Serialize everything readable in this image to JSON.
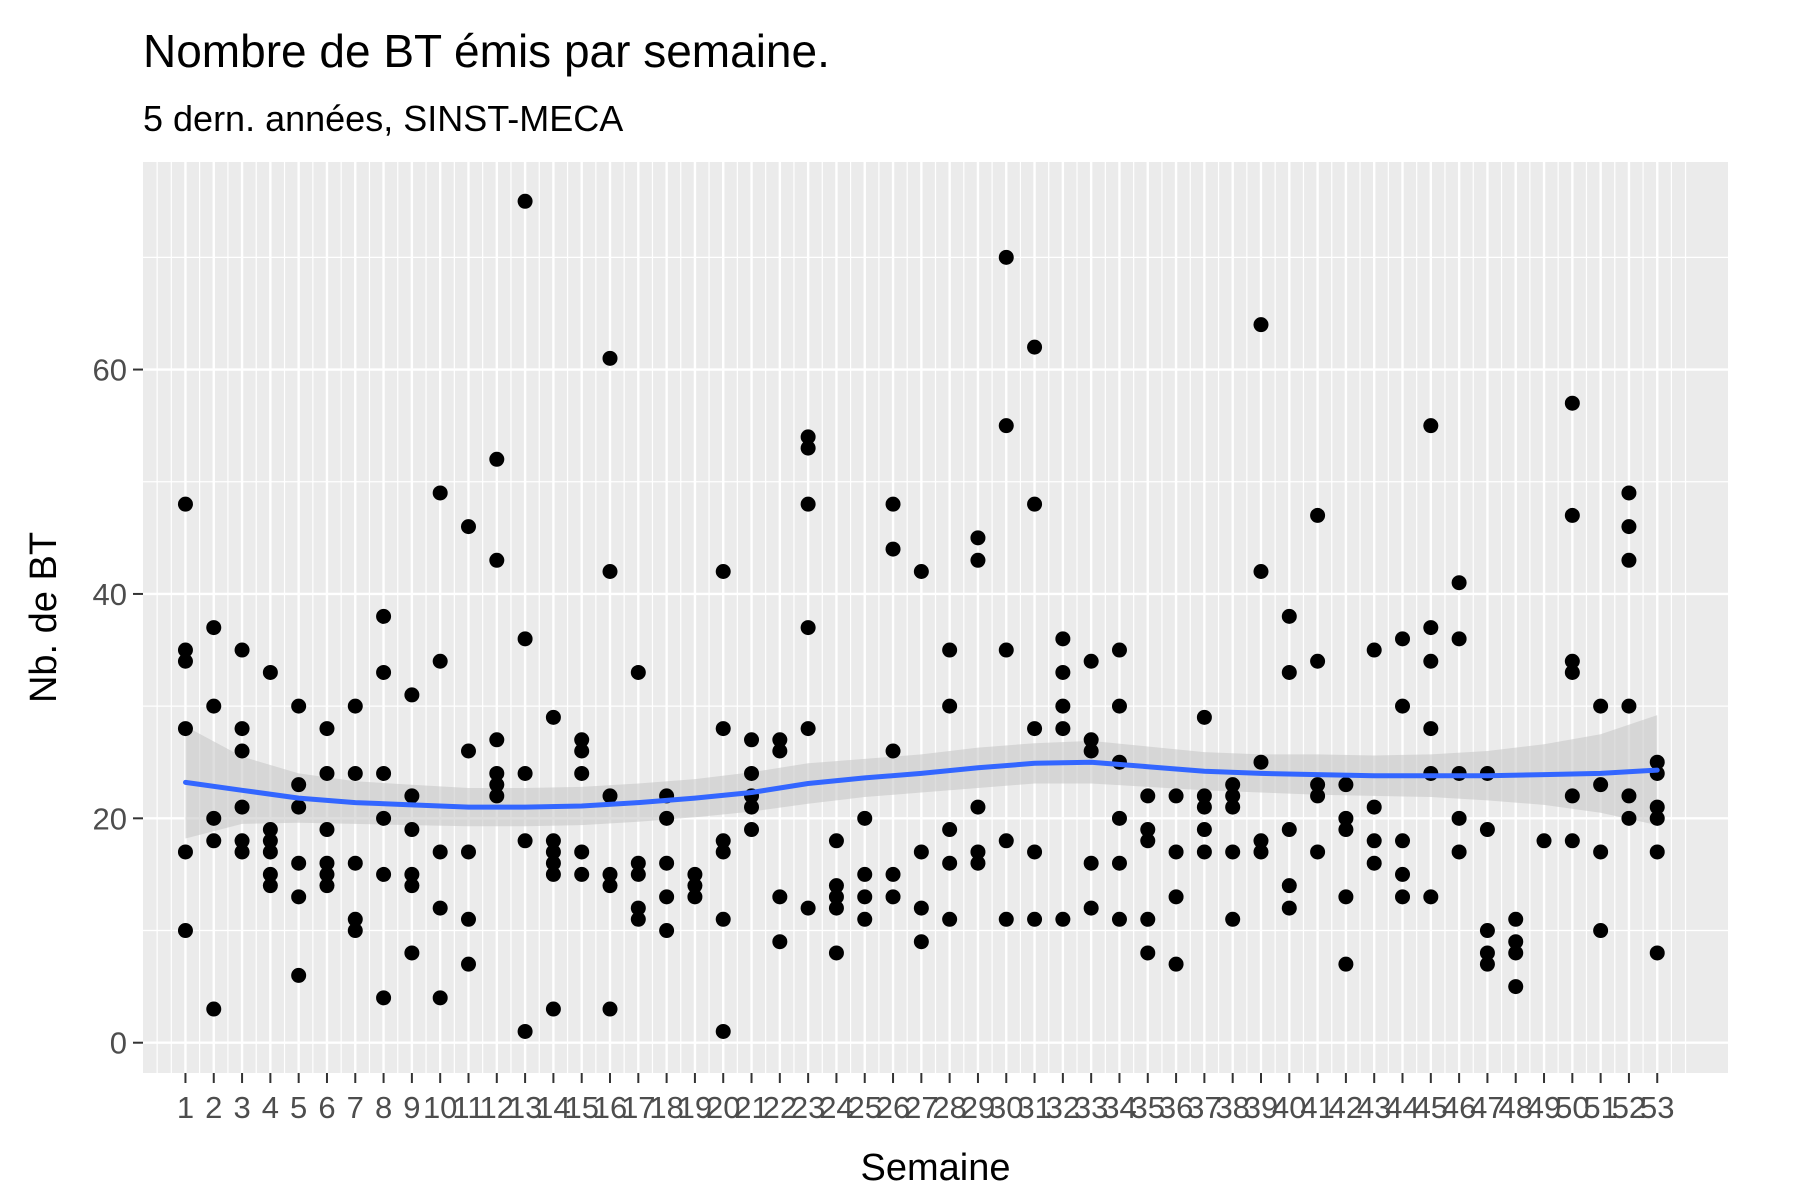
{
  "title": "Nombre de BT émis par semaine.",
  "subtitle": "5 dern. années, SINST-MECA",
  "chart_data": {
    "type": "scatter",
    "xlabel": "Semaine",
    "ylabel": "Nb. de BT",
    "x_ticks": [
      1,
      2,
      3,
      4,
      5,
      6,
      7,
      8,
      9,
      10,
      11,
      12,
      13,
      14,
      15,
      16,
      17,
      18,
      19,
      20,
      21,
      22,
      23,
      24,
      25,
      26,
      27,
      28,
      29,
      30,
      31,
      32,
      33,
      34,
      35,
      36,
      37,
      38,
      39,
      40,
      41,
      42,
      43,
      44,
      45,
      46,
      47,
      48,
      49,
      50,
      51,
      52,
      53
    ],
    "y_ticks": [
      0,
      20,
      40,
      60
    ],
    "xlim": [
      -0.5,
      55.5
    ],
    "ylim": [
      -2.7,
      78.5
    ],
    "grid": true,
    "panel_color": "#ebebeb",
    "point_color": "#000000",
    "smooth_color": "#3366ff",
    "ribbon_color": "#c8c8c8",
    "points": [
      [
        1,
        48
      ],
      [
        1,
        35
      ],
      [
        1,
        34
      ],
      [
        1,
        28
      ],
      [
        1,
        17
      ],
      [
        1,
        10
      ],
      [
        2,
        37
      ],
      [
        2,
        30
      ],
      [
        2,
        20
      ],
      [
        2,
        18
      ],
      [
        2,
        3
      ],
      [
        3,
        35
      ],
      [
        3,
        28
      ],
      [
        3,
        26
      ],
      [
        3,
        21
      ],
      [
        3,
        18
      ],
      [
        3,
        17
      ],
      [
        4,
        33
      ],
      [
        4,
        19
      ],
      [
        4,
        18
      ],
      [
        4,
        17
      ],
      [
        4,
        15
      ],
      [
        4,
        14
      ],
      [
        5,
        30
      ],
      [
        5,
        23
      ],
      [
        5,
        21
      ],
      [
        5,
        16
      ],
      [
        5,
        13
      ],
      [
        5,
        6
      ],
      [
        6,
        28
      ],
      [
        6,
        24
      ],
      [
        6,
        19
      ],
      [
        6,
        16
      ],
      [
        6,
        15
      ],
      [
        6,
        14
      ],
      [
        7,
        30
      ],
      [
        7,
        24
      ],
      [
        7,
        16
      ],
      [
        7,
        11
      ],
      [
        7,
        10
      ],
      [
        8,
        38
      ],
      [
        8,
        33
      ],
      [
        8,
        24
      ],
      [
        8,
        20
      ],
      [
        8,
        15
      ],
      [
        8,
        4
      ],
      [
        9,
        31
      ],
      [
        9,
        22
      ],
      [
        9,
        19
      ],
      [
        9,
        15
      ],
      [
        9,
        14
      ],
      [
        9,
        8
      ],
      [
        10,
        49
      ],
      [
        10,
        34
      ],
      [
        10,
        17
      ],
      [
        10,
        12
      ],
      [
        10,
        4
      ],
      [
        11,
        46
      ],
      [
        11,
        26
      ],
      [
        11,
        17
      ],
      [
        11,
        11
      ],
      [
        11,
        7
      ],
      [
        12,
        52
      ],
      [
        12,
        43
      ],
      [
        12,
        27
      ],
      [
        12,
        24
      ],
      [
        12,
        23
      ],
      [
        12,
        22
      ],
      [
        13,
        75
      ],
      [
        13,
        36
      ],
      [
        13,
        24
      ],
      [
        13,
        18
      ],
      [
        13,
        1
      ],
      [
        14,
        29
      ],
      [
        14,
        18
      ],
      [
        14,
        17
      ],
      [
        14,
        16
      ],
      [
        14,
        15
      ],
      [
        14,
        3
      ],
      [
        15,
        27
      ],
      [
        15,
        26
      ],
      [
        15,
        24
      ],
      [
        15,
        17
      ],
      [
        15,
        15
      ],
      [
        16,
        61
      ],
      [
        16,
        42
      ],
      [
        16,
        22
      ],
      [
        16,
        15
      ],
      [
        16,
        14
      ],
      [
        16,
        3
      ],
      [
        17,
        33
      ],
      [
        17,
        16
      ],
      [
        17,
        15
      ],
      [
        17,
        12
      ],
      [
        17,
        11
      ],
      [
        18,
        22
      ],
      [
        18,
        20
      ],
      [
        18,
        16
      ],
      [
        18,
        13
      ],
      [
        18,
        10
      ],
      [
        19,
        15
      ],
      [
        19,
        14
      ],
      [
        19,
        13
      ],
      [
        20,
        42
      ],
      [
        20,
        28
      ],
      [
        20,
        18
      ],
      [
        20,
        17
      ],
      [
        20,
        11
      ],
      [
        20,
        1
      ],
      [
        21,
        27
      ],
      [
        21,
        24
      ],
      [
        21,
        22
      ],
      [
        21,
        21
      ],
      [
        21,
        19
      ],
      [
        22,
        27
      ],
      [
        22,
        26
      ],
      [
        22,
        13
      ],
      [
        22,
        9
      ],
      [
        23,
        54
      ],
      [
        23,
        53
      ],
      [
        23,
        48
      ],
      [
        23,
        37
      ],
      [
        23,
        28
      ],
      [
        23,
        12
      ],
      [
        24,
        18
      ],
      [
        24,
        14
      ],
      [
        24,
        13
      ],
      [
        24,
        12
      ],
      [
        24,
        8
      ],
      [
        25,
        20
      ],
      [
        25,
        15
      ],
      [
        25,
        13
      ],
      [
        25,
        11
      ],
      [
        26,
        48
      ],
      [
        26,
        44
      ],
      [
        26,
        26
      ],
      [
        26,
        15
      ],
      [
        26,
        13
      ],
      [
        27,
        42
      ],
      [
        27,
        17
      ],
      [
        27,
        12
      ],
      [
        27,
        9
      ],
      [
        28,
        35
      ],
      [
        28,
        30
      ],
      [
        28,
        19
      ],
      [
        28,
        16
      ],
      [
        28,
        11
      ],
      [
        29,
        45
      ],
      [
        29,
        43
      ],
      [
        29,
        21
      ],
      [
        29,
        17
      ],
      [
        29,
        16
      ],
      [
        30,
        70
      ],
      [
        30,
        55
      ],
      [
        30,
        35
      ],
      [
        30,
        18
      ],
      [
        30,
        11
      ],
      [
        31,
        62
      ],
      [
        31,
        48
      ],
      [
        31,
        28
      ],
      [
        31,
        17
      ],
      [
        31,
        11
      ],
      [
        32,
        36
      ],
      [
        32,
        33
      ],
      [
        32,
        30
      ],
      [
        32,
        28
      ],
      [
        32,
        11
      ],
      [
        33,
        34
      ],
      [
        33,
        27
      ],
      [
        33,
        26
      ],
      [
        33,
        16
      ],
      [
        33,
        12
      ],
      [
        34,
        35
      ],
      [
        34,
        30
      ],
      [
        34,
        25
      ],
      [
        34,
        20
      ],
      [
        34,
        16
      ],
      [
        34,
        11
      ],
      [
        35,
        22
      ],
      [
        35,
        19
      ],
      [
        35,
        18
      ],
      [
        35,
        11
      ],
      [
        35,
        8
      ],
      [
        36,
        22
      ],
      [
        36,
        17
      ],
      [
        36,
        13
      ],
      [
        36,
        7
      ],
      [
        37,
        29
      ],
      [
        37,
        22
      ],
      [
        37,
        21
      ],
      [
        37,
        19
      ],
      [
        37,
        17
      ],
      [
        38,
        23
      ],
      [
        38,
        22
      ],
      [
        38,
        21
      ],
      [
        38,
        17
      ],
      [
        38,
        11
      ],
      [
        39,
        64
      ],
      [
        39,
        42
      ],
      [
        39,
        25
      ],
      [
        39,
        18
      ],
      [
        39,
        17
      ],
      [
        40,
        38
      ],
      [
        40,
        33
      ],
      [
        40,
        19
      ],
      [
        40,
        14
      ],
      [
        40,
        12
      ],
      [
        41,
        47
      ],
      [
        41,
        34
      ],
      [
        41,
        23
      ],
      [
        41,
        22
      ],
      [
        41,
        17
      ],
      [
        42,
        23
      ],
      [
        42,
        20
      ],
      [
        42,
        19
      ],
      [
        42,
        13
      ],
      [
        42,
        7
      ],
      [
        43,
        35
      ],
      [
        43,
        21
      ],
      [
        43,
        18
      ],
      [
        43,
        16
      ],
      [
        44,
        36
      ],
      [
        44,
        30
      ],
      [
        44,
        18
      ],
      [
        44,
        15
      ],
      [
        44,
        13
      ],
      [
        45,
        55
      ],
      [
        45,
        37
      ],
      [
        45,
        34
      ],
      [
        45,
        28
      ],
      [
        45,
        24
      ],
      [
        45,
        13
      ],
      [
        46,
        41
      ],
      [
        46,
        36
      ],
      [
        46,
        24
      ],
      [
        46,
        20
      ],
      [
        46,
        17
      ],
      [
        47,
        24
      ],
      [
        47,
        19
      ],
      [
        47,
        10
      ],
      [
        47,
        8
      ],
      [
        47,
        7
      ],
      [
        48,
        11
      ],
      [
        48,
        9
      ],
      [
        48,
        8
      ],
      [
        48,
        5
      ],
      [
        49,
        18
      ],
      [
        50,
        57
      ],
      [
        50,
        47
      ],
      [
        50,
        34
      ],
      [
        50,
        33
      ],
      [
        50,
        22
      ],
      [
        50,
        18
      ],
      [
        51,
        30
      ],
      [
        51,
        23
      ],
      [
        51,
        17
      ],
      [
        51,
        10
      ],
      [
        52,
        49
      ],
      [
        52,
        46
      ],
      [
        52,
        43
      ],
      [
        52,
        30
      ],
      [
        52,
        22
      ],
      [
        52,
        20
      ],
      [
        53,
        25
      ],
      [
        53,
        24
      ],
      [
        53,
        21
      ],
      [
        53,
        20
      ],
      [
        53,
        17
      ],
      [
        53,
        8
      ]
    ],
    "smooth": [
      [
        1,
        23.2
      ],
      [
        3,
        22.5
      ],
      [
        5,
        21.8
      ],
      [
        7,
        21.4
      ],
      [
        9,
        21.2
      ],
      [
        11,
        21.0
      ],
      [
        13,
        21.0
      ],
      [
        15,
        21.1
      ],
      [
        17,
        21.4
      ],
      [
        19,
        21.8
      ],
      [
        21,
        22.3
      ],
      [
        23,
        23.1
      ],
      [
        25,
        23.6
      ],
      [
        27,
        24.0
      ],
      [
        29,
        24.5
      ],
      [
        31,
        24.9
      ],
      [
        33,
        25.0
      ],
      [
        35,
        24.6
      ],
      [
        37,
        24.2
      ],
      [
        39,
        24.0
      ],
      [
        41,
        23.9
      ],
      [
        43,
        23.8
      ],
      [
        45,
        23.8
      ],
      [
        47,
        23.8
      ],
      [
        49,
        23.9
      ],
      [
        51,
        24.0
      ],
      [
        53,
        24.3
      ]
    ],
    "ribbon": [
      [
        1,
        18.2,
        28.2
      ],
      [
        3,
        19.5,
        25.5
      ],
      [
        5,
        19.6,
        24.0
      ],
      [
        7,
        19.5,
        23.3
      ],
      [
        9,
        19.4,
        23.0
      ],
      [
        11,
        19.3,
        22.7
      ],
      [
        13,
        19.3,
        22.7
      ],
      [
        15,
        19.4,
        22.8
      ],
      [
        17,
        19.7,
        23.1
      ],
      [
        19,
        20.1,
        23.5
      ],
      [
        21,
        20.6,
        24.1
      ],
      [
        23,
        21.3,
        24.9
      ],
      [
        25,
        21.9,
        25.3
      ],
      [
        27,
        22.3,
        25.7
      ],
      [
        29,
        22.7,
        26.3
      ],
      [
        31,
        23.1,
        26.7
      ],
      [
        33,
        23.1,
        26.9
      ],
      [
        35,
        22.8,
        26.4
      ],
      [
        37,
        22.5,
        25.9
      ],
      [
        39,
        22.3,
        25.7
      ],
      [
        41,
        22.1,
        25.7
      ],
      [
        43,
        22.0,
        25.6
      ],
      [
        45,
        21.9,
        25.7
      ],
      [
        47,
        21.6,
        26.0
      ],
      [
        49,
        21.2,
        26.6
      ],
      [
        51,
        20.5,
        27.5
      ],
      [
        53,
        19.4,
        29.2
      ]
    ]
  }
}
